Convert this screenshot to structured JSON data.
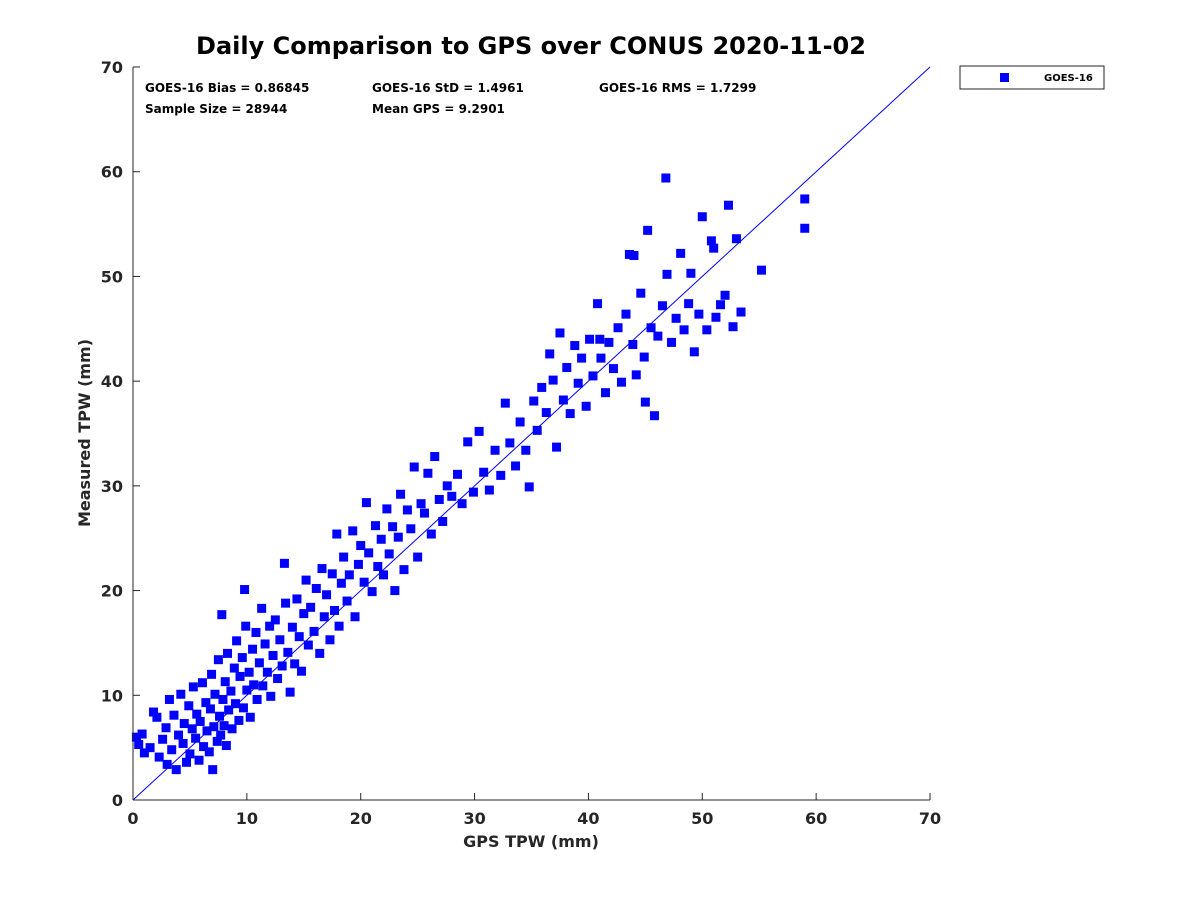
{
  "chart_data": {
    "type": "scatter",
    "title": "Daily Comparison to GPS over CONUS 2020-11-02",
    "xlabel": "GPS TPW (mm)",
    "ylabel": "Measured TPW (mm)",
    "xlim": [
      0,
      70
    ],
    "ylim": [
      0,
      70
    ],
    "xticks": [
      "0",
      "10",
      "20",
      "30",
      "40",
      "50",
      "60",
      "70"
    ],
    "yticks": [
      "0",
      "10",
      "20",
      "30",
      "40",
      "50",
      "60",
      "70"
    ],
    "grid": false,
    "legend_position": "top-right-outside",
    "reference_line": {
      "from": [
        0,
        0
      ],
      "to": [
        70,
        70
      ],
      "color": "#0000ff"
    },
    "stats": {
      "bias": "GOES-16 Bias = 0.86845",
      "std": "GOES-16 StD = 1.4961",
      "rms": "GOES-16 RMS = 1.7299",
      "sample_size": "Sample Size = 28944",
      "mean_gps": "Mean GPS = 9.2901"
    },
    "series": [
      {
        "name": "GOES-16",
        "color": "#0000ff",
        "marker": "square",
        "points": [
          [
            0.3,
            6.0
          ],
          [
            0.5,
            5.3
          ],
          [
            0.8,
            6.3
          ],
          [
            1.0,
            4.5
          ],
          [
            1.5,
            5.0
          ],
          [
            1.8,
            8.4
          ],
          [
            2.1,
            7.9
          ],
          [
            2.3,
            4.1
          ],
          [
            2.6,
            5.8
          ],
          [
            2.9,
            6.9
          ],
          [
            3.2,
            9.6
          ],
          [
            3.0,
            3.4
          ],
          [
            3.4,
            4.8
          ],
          [
            3.6,
            8.1
          ],
          [
            3.8,
            2.9
          ],
          [
            4.0,
            6.2
          ],
          [
            4.2,
            10.1
          ],
          [
            4.4,
            5.4
          ],
          [
            4.5,
            7.3
          ],
          [
            4.7,
            3.6
          ],
          [
            4.9,
            9.0
          ],
          [
            5.0,
            4.4
          ],
          [
            5.2,
            6.8
          ],
          [
            5.3,
            10.8
          ],
          [
            5.5,
            5.9
          ],
          [
            5.6,
            8.2
          ],
          [
            5.8,
            3.8
          ],
          [
            5.9,
            7.5
          ],
          [
            6.1,
            11.2
          ],
          [
            6.2,
            5.1
          ],
          [
            6.4,
            9.3
          ],
          [
            6.5,
            6.6
          ],
          [
            6.7,
            4.6
          ],
          [
            6.8,
            8.7
          ],
          [
            6.9,
            12.0
          ],
          [
            7.0,
            2.9
          ],
          [
            7.1,
            7.0
          ],
          [
            7.2,
            10.1
          ],
          [
            7.4,
            5.6
          ],
          [
            7.5,
            13.4
          ],
          [
            7.6,
            8.0
          ],
          [
            7.7,
            6.2
          ],
          [
            7.8,
            17.7
          ],
          [
            7.9,
            9.6
          ],
          [
            8.0,
            7.1
          ],
          [
            8.1,
            11.3
          ],
          [
            8.2,
            5.2
          ],
          [
            8.3,
            14.0
          ],
          [
            8.4,
            8.6
          ],
          [
            8.6,
            10.4
          ],
          [
            8.7,
            6.8
          ],
          [
            8.9,
            12.6
          ],
          [
            9.0,
            9.2
          ],
          [
            9.1,
            15.2
          ],
          [
            9.3,
            7.6
          ],
          [
            9.4,
            11.8
          ],
          [
            9.6,
            13.6
          ],
          [
            9.7,
            8.8
          ],
          [
            9.8,
            20.1
          ],
          [
            9.9,
            16.6
          ],
          [
            10.0,
            10.5
          ],
          [
            10.2,
            12.2
          ],
          [
            10.3,
            7.9
          ],
          [
            10.5,
            14.4
          ],
          [
            10.6,
            11.0
          ],
          [
            10.8,
            16.0
          ],
          [
            10.9,
            9.6
          ],
          [
            11.1,
            13.1
          ],
          [
            11.3,
            18.3
          ],
          [
            11.4,
            10.9
          ],
          [
            11.6,
            14.9
          ],
          [
            11.8,
            12.2
          ],
          [
            12.0,
            16.6
          ],
          [
            12.1,
            9.9
          ],
          [
            12.3,
            13.8
          ],
          [
            12.5,
            17.2
          ],
          [
            12.7,
            11.6
          ],
          [
            12.9,
            15.3
          ],
          [
            13.1,
            12.8
          ],
          [
            13.3,
            22.6
          ],
          [
            13.4,
            18.8
          ],
          [
            13.6,
            14.1
          ],
          [
            13.8,
            10.3
          ],
          [
            14.0,
            16.5
          ],
          [
            14.2,
            13.0
          ],
          [
            14.4,
            19.2
          ],
          [
            14.6,
            15.6
          ],
          [
            14.8,
            12.3
          ],
          [
            15.0,
            17.8
          ],
          [
            15.2,
            21.0
          ],
          [
            15.4,
            14.8
          ],
          [
            15.6,
            18.4
          ],
          [
            15.9,
            16.1
          ],
          [
            16.1,
            20.2
          ],
          [
            16.4,
            14.0
          ],
          [
            16.6,
            22.1
          ],
          [
            16.8,
            17.5
          ],
          [
            17.0,
            19.6
          ],
          [
            17.3,
            15.3
          ],
          [
            17.5,
            21.6
          ],
          [
            17.7,
            18.1
          ],
          [
            17.9,
            25.4
          ],
          [
            18.1,
            16.6
          ],
          [
            18.3,
            20.7
          ],
          [
            18.5,
            23.2
          ],
          [
            18.8,
            19.0
          ],
          [
            19.0,
            21.5
          ],
          [
            19.3,
            25.7
          ],
          [
            19.5,
            17.5
          ],
          [
            19.8,
            22.5
          ],
          [
            20.0,
            24.3
          ],
          [
            20.3,
            20.8
          ],
          [
            20.5,
            28.4
          ],
          [
            20.7,
            23.6
          ],
          [
            21.0,
            19.9
          ],
          [
            21.3,
            26.2
          ],
          [
            21.5,
            22.3
          ],
          [
            21.8,
            24.9
          ],
          [
            22.0,
            21.5
          ],
          [
            22.3,
            27.8
          ],
          [
            22.5,
            23.5
          ],
          [
            22.8,
            26.1
          ],
          [
            23.0,
            20.0
          ],
          [
            23.3,
            25.1
          ],
          [
            23.5,
            29.2
          ],
          [
            23.8,
            22.0
          ],
          [
            24.1,
            27.7
          ],
          [
            24.4,
            25.9
          ],
          [
            24.7,
            31.8
          ],
          [
            25.0,
            23.2
          ],
          [
            25.3,
            28.3
          ],
          [
            25.6,
            27.4
          ],
          [
            25.9,
            31.2
          ],
          [
            26.2,
            25.4
          ],
          [
            26.5,
            32.8
          ],
          [
            26.9,
            28.7
          ],
          [
            27.2,
            26.6
          ],
          [
            27.6,
            30.0
          ],
          [
            28.0,
            29.0
          ],
          [
            28.5,
            31.1
          ],
          [
            28.9,
            28.3
          ],
          [
            29.4,
            34.2
          ],
          [
            29.9,
            29.4
          ],
          [
            30.4,
            35.2
          ],
          [
            30.8,
            31.3
          ],
          [
            31.3,
            29.6
          ],
          [
            31.8,
            33.4
          ],
          [
            32.3,
            31.0
          ],
          [
            32.7,
            37.9
          ],
          [
            33.1,
            34.1
          ],
          [
            33.6,
            31.9
          ],
          [
            34.0,
            36.1
          ],
          [
            34.5,
            33.4
          ],
          [
            34.8,
            29.9
          ],
          [
            35.2,
            38.1
          ],
          [
            35.5,
            35.3
          ],
          [
            35.9,
            39.4
          ],
          [
            36.3,
            37.0
          ],
          [
            36.6,
            42.6
          ],
          [
            36.9,
            40.1
          ],
          [
            37.2,
            33.7
          ],
          [
            37.5,
            44.6
          ],
          [
            37.8,
            38.2
          ],
          [
            38.1,
            41.3
          ],
          [
            38.4,
            36.9
          ],
          [
            38.8,
            43.4
          ],
          [
            39.1,
            39.8
          ],
          [
            39.4,
            42.2
          ],
          [
            39.8,
            37.6
          ],
          [
            40.1,
            44.0
          ],
          [
            40.4,
            40.5
          ],
          [
            40.8,
            47.4
          ],
          [
            41.1,
            42.2
          ],
          [
            41.5,
            38.9
          ],
          [
            41.8,
            43.7
          ],
          [
            42.2,
            41.2
          ],
          [
            42.6,
            45.1
          ],
          [
            42.9,
            39.9
          ],
          [
            43.3,
            46.4
          ],
          [
            43.6,
            52.1
          ],
          [
            43.9,
            43.5
          ],
          [
            44.2,
            40.6
          ],
          [
            44.6,
            48.4
          ],
          [
            44.9,
            42.3
          ],
          [
            45.2,
            54.4
          ],
          [
            45.5,
            45.1
          ],
          [
            45.8,
            36.7
          ],
          [
            46.1,
            44.3
          ],
          [
            46.5,
            47.2
          ],
          [
            46.9,
            50.2
          ],
          [
            47.3,
            43.7
          ],
          [
            47.7,
            46.0
          ],
          [
            48.1,
            52.2
          ],
          [
            48.4,
            44.9
          ],
          [
            48.8,
            47.4
          ],
          [
            49.3,
            42.8
          ],
          [
            49.7,
            46.4
          ],
          [
            50.0,
            55.7
          ],
          [
            50.4,
            44.9
          ],
          [
            50.8,
            53.4
          ],
          [
            51.2,
            46.1
          ],
          [
            51.6,
            47.3
          ],
          [
            52.0,
            48.2
          ],
          [
            52.3,
            56.8
          ],
          [
            52.7,
            45.2
          ],
          [
            53.0,
            53.6
          ],
          [
            53.4,
            46.6
          ],
          [
            55.2,
            50.6
          ],
          [
            46.8,
            59.4
          ],
          [
            49.0,
            50.3
          ],
          [
            51.0,
            52.7
          ],
          [
            59.0,
            57.4
          ],
          [
            59.0,
            54.6
          ],
          [
            44.0,
            52.0
          ],
          [
            41.0,
            44.0
          ],
          [
            45.0,
            38.0
          ]
        ]
      }
    ]
  }
}
